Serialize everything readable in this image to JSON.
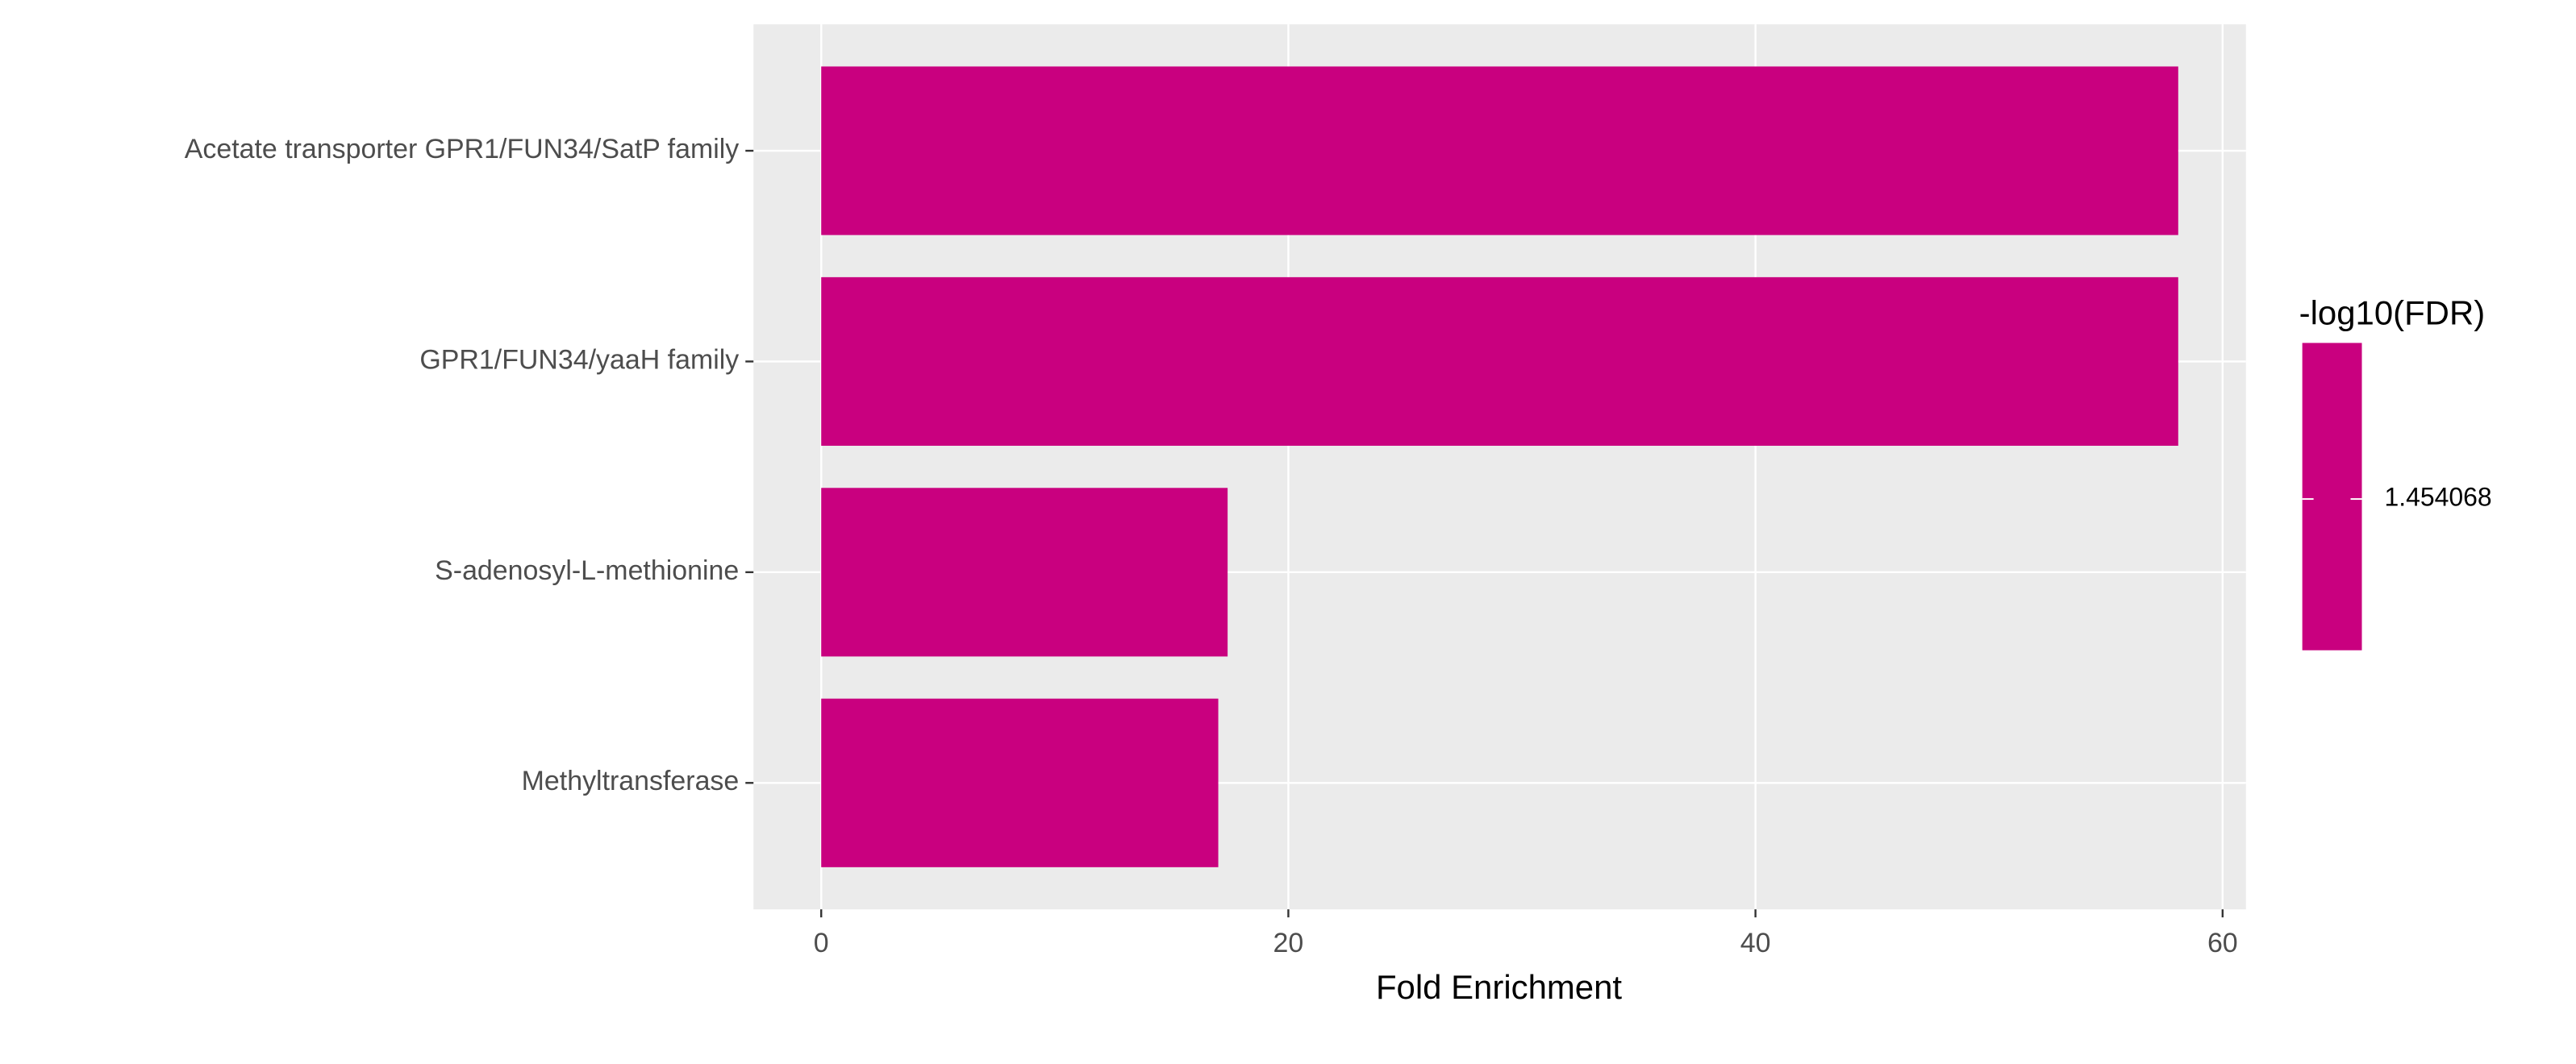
{
  "chart_data": {
    "type": "bar",
    "orientation": "horizontal",
    "categories": [
      "Acetate transporter GPR1/FUN34/SatP family",
      "GPR1/FUN34/yaaH family",
      "S-adenosyl-L-methionine",
      "Methyltransferase"
    ],
    "values": [
      58.1,
      58.1,
      17.4,
      17.0
    ],
    "color": "#c9007f",
    "x_label": "Fold Enrichment",
    "xlim": [
      -2.9,
      61.0
    ],
    "xticks": [
      0,
      20,
      40,
      60
    ],
    "legend": {
      "title": "-log10(FDR)",
      "ticks": [
        1.454068
      ]
    },
    "panel_background": "#ebebeb"
  }
}
